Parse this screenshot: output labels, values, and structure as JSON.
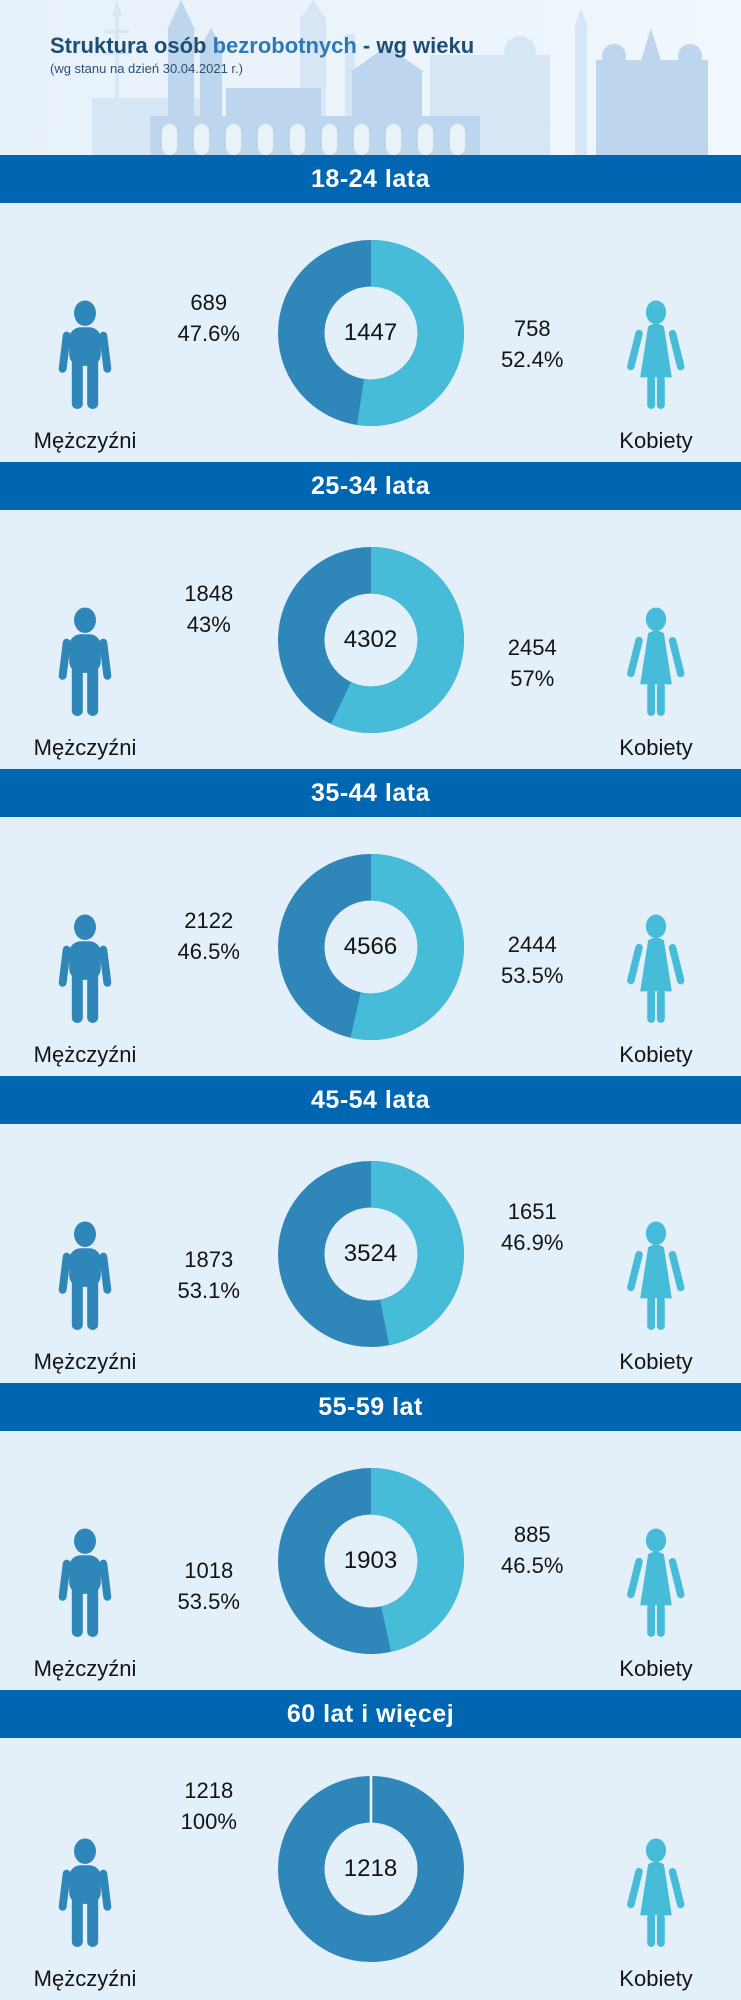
{
  "page": {
    "title": {
      "prefix": "Struktura osób ",
      "highlight": "bezrobotnych",
      "suffix": " - wg wieku"
    },
    "subtitle": "(wg stanu na dzień 30.04.2021 r.)",
    "labels": {
      "men": "Mężczyźni",
      "women": "Kobiety"
    },
    "colors": {
      "men": "#2f86b8",
      "women": "#47bcd8",
      "header_bar": "#0066b2",
      "section_bg": "#e3f0fa",
      "header_bg": "#eaf3fb",
      "title_dark": "#1d4e75",
      "title_accent": "#2e77b8",
      "value_text": "#141414",
      "skyline_front": "#bdd5ed",
      "skyline_back": "#d6e6f5"
    }
  },
  "chart_data": [
    {
      "type": "donut",
      "title": "18-24 lata",
      "total": 1447,
      "series": [
        {
          "name": "Mężczyźni",
          "value": 689,
          "pct": "47.6%"
        },
        {
          "name": "Kobiety",
          "value": 758,
          "pct": "52.4%"
        }
      ]
    },
    {
      "type": "donut",
      "title": "25-34 lata",
      "total": 4302,
      "series": [
        {
          "name": "Mężczyźni",
          "value": 1848,
          "pct": "43%"
        },
        {
          "name": "Kobiety",
          "value": 2454,
          "pct": "57%"
        }
      ]
    },
    {
      "type": "donut",
      "title": "35-44 lata",
      "total": 4566,
      "series": [
        {
          "name": "Mężczyźni",
          "value": 2122,
          "pct": "46.5%"
        },
        {
          "name": "Kobiety",
          "value": 2444,
          "pct": "53.5%"
        }
      ]
    },
    {
      "type": "donut",
      "title": "45-54 lata",
      "total": 3524,
      "series": [
        {
          "name": "Mężczyźni",
          "value": 1873,
          "pct": "53.1%"
        },
        {
          "name": "Kobiety",
          "value": 1651,
          "pct": "46.9%"
        }
      ]
    },
    {
      "type": "donut",
      "title": "55-59 lat",
      "total": 1903,
      "series": [
        {
          "name": "Mężczyźni",
          "value": 1018,
          "pct": "53.5%"
        },
        {
          "name": "Kobiety",
          "value": 885,
          "pct": "46.5%"
        }
      ]
    },
    {
      "type": "donut",
      "title": "60 lat i więcej",
      "total": 1218,
      "series": [
        {
          "name": "Mężczyźni",
          "value": 1218,
          "pct": "100%"
        },
        {
          "name": "Kobiety",
          "value": null,
          "pct": null
        }
      ]
    }
  ]
}
